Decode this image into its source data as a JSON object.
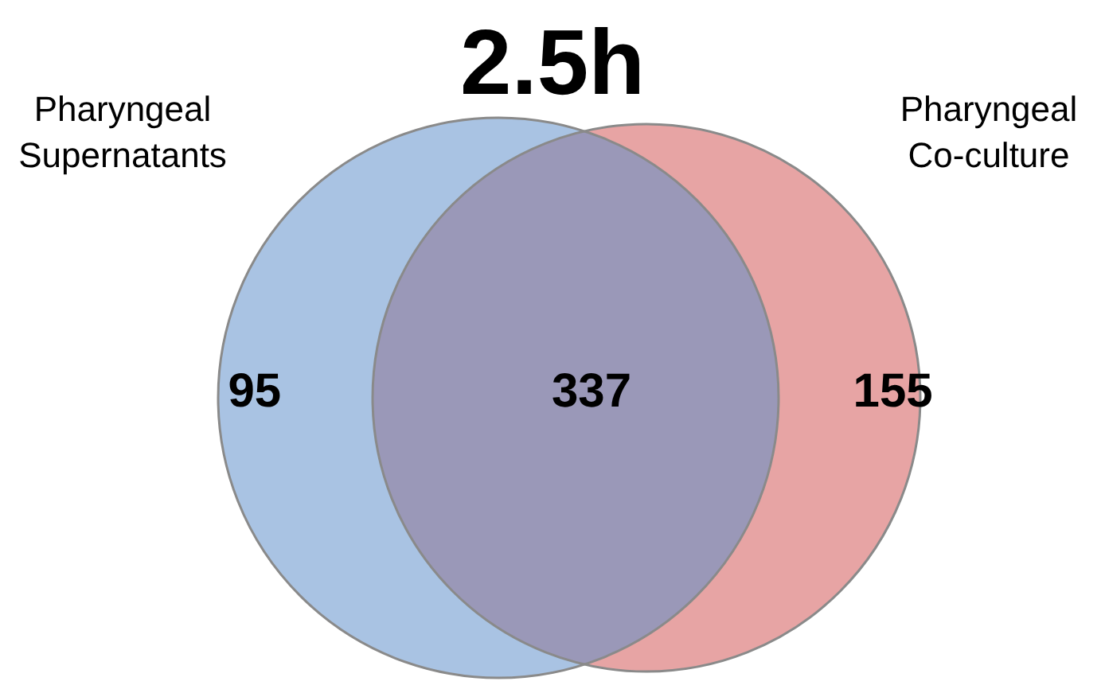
{
  "chart_data": {
    "type": "other",
    "title": "2.5h",
    "categories": [
      "Pharyngeal Supernatants",
      null,
      "Pharyngeal Co-culture"
    ],
    "values": [
      95,
      337,
      155
    ],
    "colors": [
      "#a9c3e3",
      "#9a98b8",
      "#e7a4a4"
    ],
    "data_labels": true
  }
}
